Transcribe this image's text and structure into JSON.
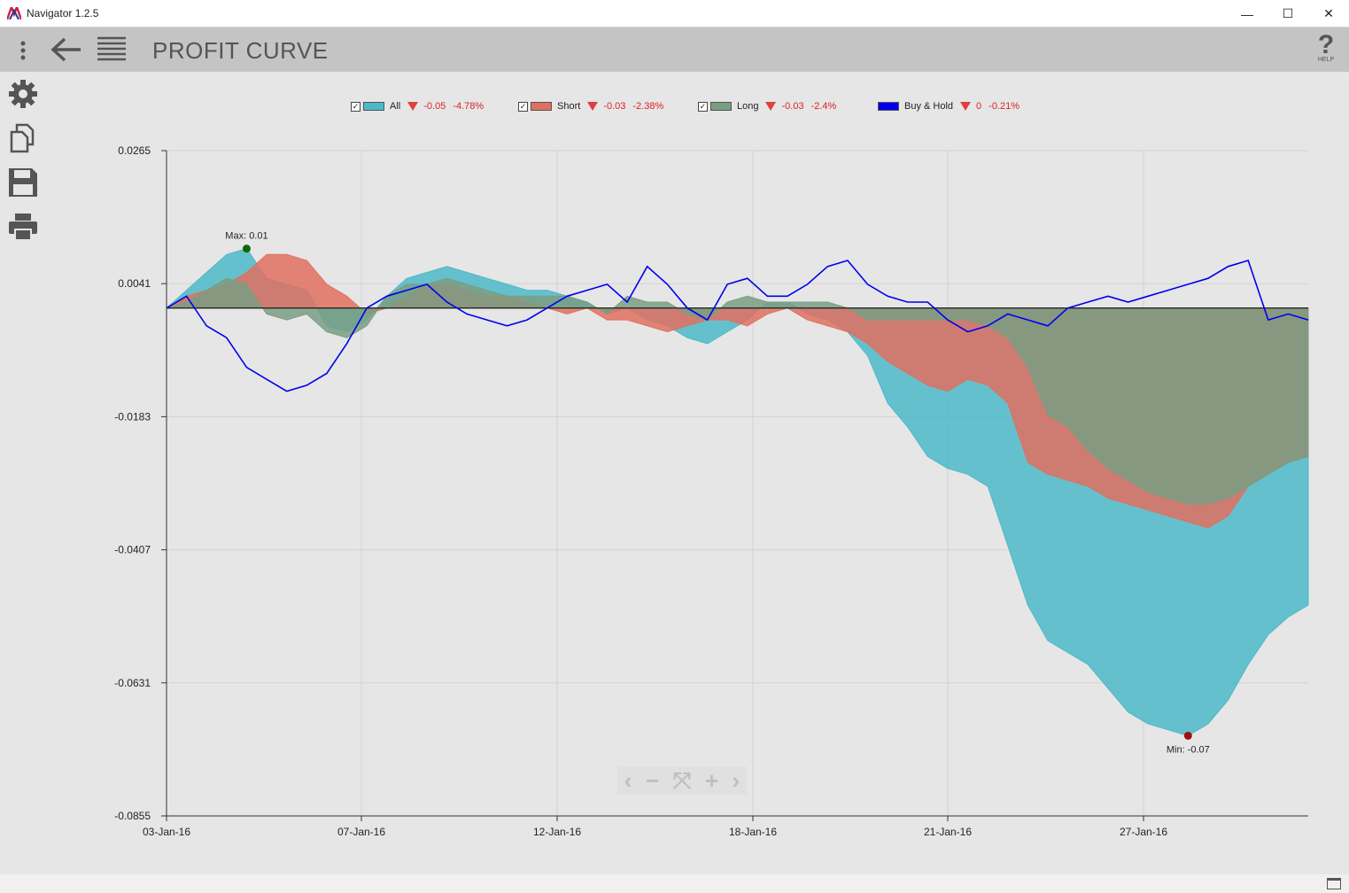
{
  "window": {
    "title": "Navigator 1.2.5",
    "min_glyph": "—",
    "max_glyph": "☐",
    "close_glyph": "✕"
  },
  "toolbar": {
    "title": "PROFIT CURVE",
    "help_glyph": "?",
    "help_label": "HELP"
  },
  "sidebar": {
    "icons": [
      "gear-icon",
      "copy-icon",
      "save-icon",
      "print-icon"
    ]
  },
  "legend": [
    {
      "name": "All",
      "color": "#4db8c8",
      "change": "-0.05",
      "pct": "-4.78%"
    },
    {
      "name": "Short",
      "color": "#e07060",
      "change": "-0.03",
      "pct": "-2.38%"
    },
    {
      "name": "Long",
      "color": "#7a9e82",
      "change": "-0.03",
      "pct": "-2.4%"
    },
    {
      "name": "Buy & Hold",
      "color": "#0000ee",
      "change": "0",
      "pct": "-0.21%"
    }
  ],
  "chart_data": {
    "type": "area",
    "y_ticks": [
      "0.0265",
      "0.0041",
      "-0.0183",
      "-0.0407",
      "-0.0631",
      "-0.0855"
    ],
    "ylim": [
      -0.0855,
      0.0265
    ],
    "x_ticks": [
      "03-Jan-16",
      "07-Jan-16",
      "12-Jan-16",
      "18-Jan-16",
      "21-Jan-16",
      "27-Jan-16"
    ],
    "annotations": {
      "max": "Max: 0.01",
      "min": "Min: -0.07"
    },
    "series": [
      {
        "name": "All",
        "color": "#4db8c8",
        "values": [
          0,
          0.003,
          0.006,
          0.009,
          0.01,
          0.005,
          0.004,
          0.003,
          -0.003,
          -0.004,
          -0.002,
          0.002,
          0.005,
          0.006,
          0.007,
          0.006,
          0.005,
          0.004,
          0.003,
          0.003,
          0.002,
          0.001,
          -0.001,
          0,
          -0.002,
          -0.003,
          -0.005,
          -0.006,
          -0.004,
          -0.002,
          0.001,
          0.001,
          -0.001,
          -0.002,
          -0.004,
          -0.008,
          -0.016,
          -0.02,
          -0.025,
          -0.027,
          -0.028,
          -0.03,
          -0.04,
          -0.05,
          -0.056,
          -0.058,
          -0.06,
          -0.064,
          -0.068,
          -0.07,
          -0.071,
          -0.072,
          -0.07,
          -0.066,
          -0.06,
          -0.055,
          -0.052,
          -0.05
        ]
      },
      {
        "name": "Short",
        "color": "#e07060",
        "values": [
          0,
          0.002,
          0.003,
          0.004,
          0.006,
          0.009,
          0.009,
          0.008,
          0.004,
          0.002,
          -0.001,
          0,
          0.002,
          0.004,
          0.004,
          0.003,
          0.002,
          0.002,
          0.001,
          0,
          -0.001,
          0,
          -0.002,
          -0.002,
          -0.003,
          -0.004,
          -0.003,
          -0.002,
          -0.002,
          -0.003,
          -0.001,
          0,
          -0.002,
          -0.003,
          -0.004,
          -0.006,
          -0.009,
          -0.011,
          -0.013,
          -0.014,
          -0.012,
          -0.013,
          -0.016,
          -0.026,
          -0.028,
          -0.029,
          -0.03,
          -0.032,
          -0.033,
          -0.034,
          -0.035,
          -0.036,
          -0.037,
          -0.035,
          -0.03,
          -0.028,
          -0.026,
          -0.025
        ]
      },
      {
        "name": "Long",
        "color": "#7a9e82",
        "values": [
          0,
          0.001,
          0.003,
          0.005,
          0.004,
          -0.001,
          -0.002,
          -0.001,
          -0.004,
          -0.005,
          -0.003,
          0.002,
          0.004,
          0.004,
          0.005,
          0.004,
          0.003,
          0.002,
          0.002,
          0.002,
          0.002,
          0.001,
          -0.001,
          0.002,
          0.001,
          0.001,
          -0.001,
          -0.002,
          0.001,
          0.002,
          0.001,
          0.001,
          0.001,
          0.001,
          0,
          -0.002,
          -0.002,
          -0.002,
          -0.002,
          -0.002,
          -0.002,
          -0.003,
          -0.005,
          -0.01,
          -0.018,
          -0.02,
          -0.024,
          -0.027,
          -0.029,
          -0.031,
          -0.032,
          -0.033,
          -0.033,
          -0.032,
          -0.03,
          -0.028,
          -0.026,
          -0.025
        ]
      },
      {
        "name": "Buy & Hold",
        "color": "#0000ee",
        "values": [
          0,
          0.002,
          -0.003,
          -0.005,
          -0.01,
          -0.012,
          -0.014,
          -0.013,
          -0.011,
          -0.006,
          0,
          0.002,
          0.003,
          0.004,
          0.001,
          -0.001,
          -0.002,
          -0.003,
          -0.002,
          0,
          0.002,
          0.003,
          0.004,
          0.001,
          0.007,
          0.004,
          0,
          -0.002,
          0.004,
          0.005,
          0.002,
          0.002,
          0.004,
          0.007,
          0.008,
          0.004,
          0.002,
          0.001,
          0.001,
          -0.002,
          -0.004,
          -0.003,
          -0.001,
          -0.002,
          -0.003,
          0,
          0.001,
          0.002,
          0.001,
          0.002,
          0.003,
          0.004,
          0.005,
          0.007,
          0.008,
          -0.002,
          -0.001,
          -0.002
        ]
      }
    ]
  }
}
